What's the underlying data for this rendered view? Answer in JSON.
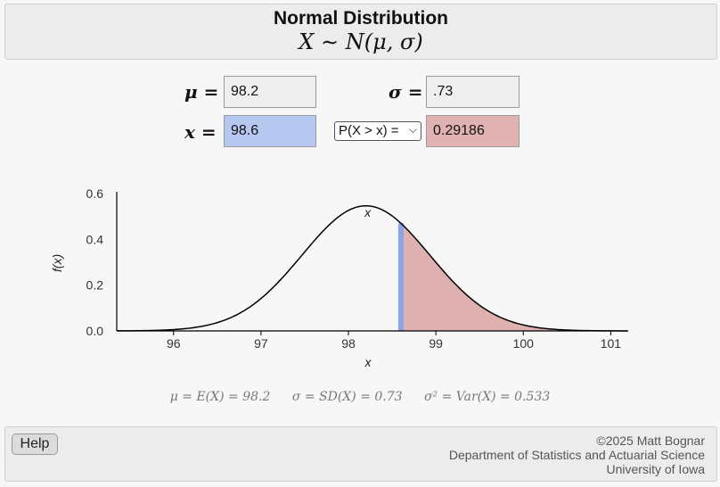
{
  "header": {
    "title": "Normal Distribution",
    "formula": "X ∼ N(μ, σ)"
  },
  "inputs": {
    "mu_label": "μ =",
    "mu_value": "98.2",
    "sigma_label": "σ =",
    "sigma_value": ".73",
    "x_label": "x =",
    "x_value": "98.6",
    "prob_select": "P(X > x) =",
    "prob_value": "0.29186"
  },
  "summary": {
    "mean": "μ = E(X) = 98.2",
    "sd": "σ = SD(X) = 0.73",
    "var": "σ² = Var(X) = 0.533"
  },
  "footer": {
    "help_label": "Help",
    "credit_line1": "©2025 Matt Bognar",
    "credit_line2": "Department of Statistics and Actuarial Science",
    "credit_line3": "University of Iowa"
  },
  "colors": {
    "x_field": "#b6c7f0",
    "prob_field": "#e0b2b2",
    "x_marker": "#8aa4e6",
    "tail_fill": "#dfb0b0"
  },
  "chart_data": {
    "type": "area",
    "distribution": "normal",
    "mu": 98.2,
    "sigma": 0.73,
    "x": 98.6,
    "shaded": "right-tail",
    "xlabel": "x",
    "ylabel": "f(x)",
    "xlim": [
      95.35,
      101.2
    ],
    "ylim": [
      0,
      0.6
    ],
    "x_ticks": [
      "96",
      "97",
      "98",
      "99",
      "100",
      "101"
    ],
    "y_ticks": [
      "0.0",
      "0.2",
      "0.4",
      "0.6"
    ]
  }
}
